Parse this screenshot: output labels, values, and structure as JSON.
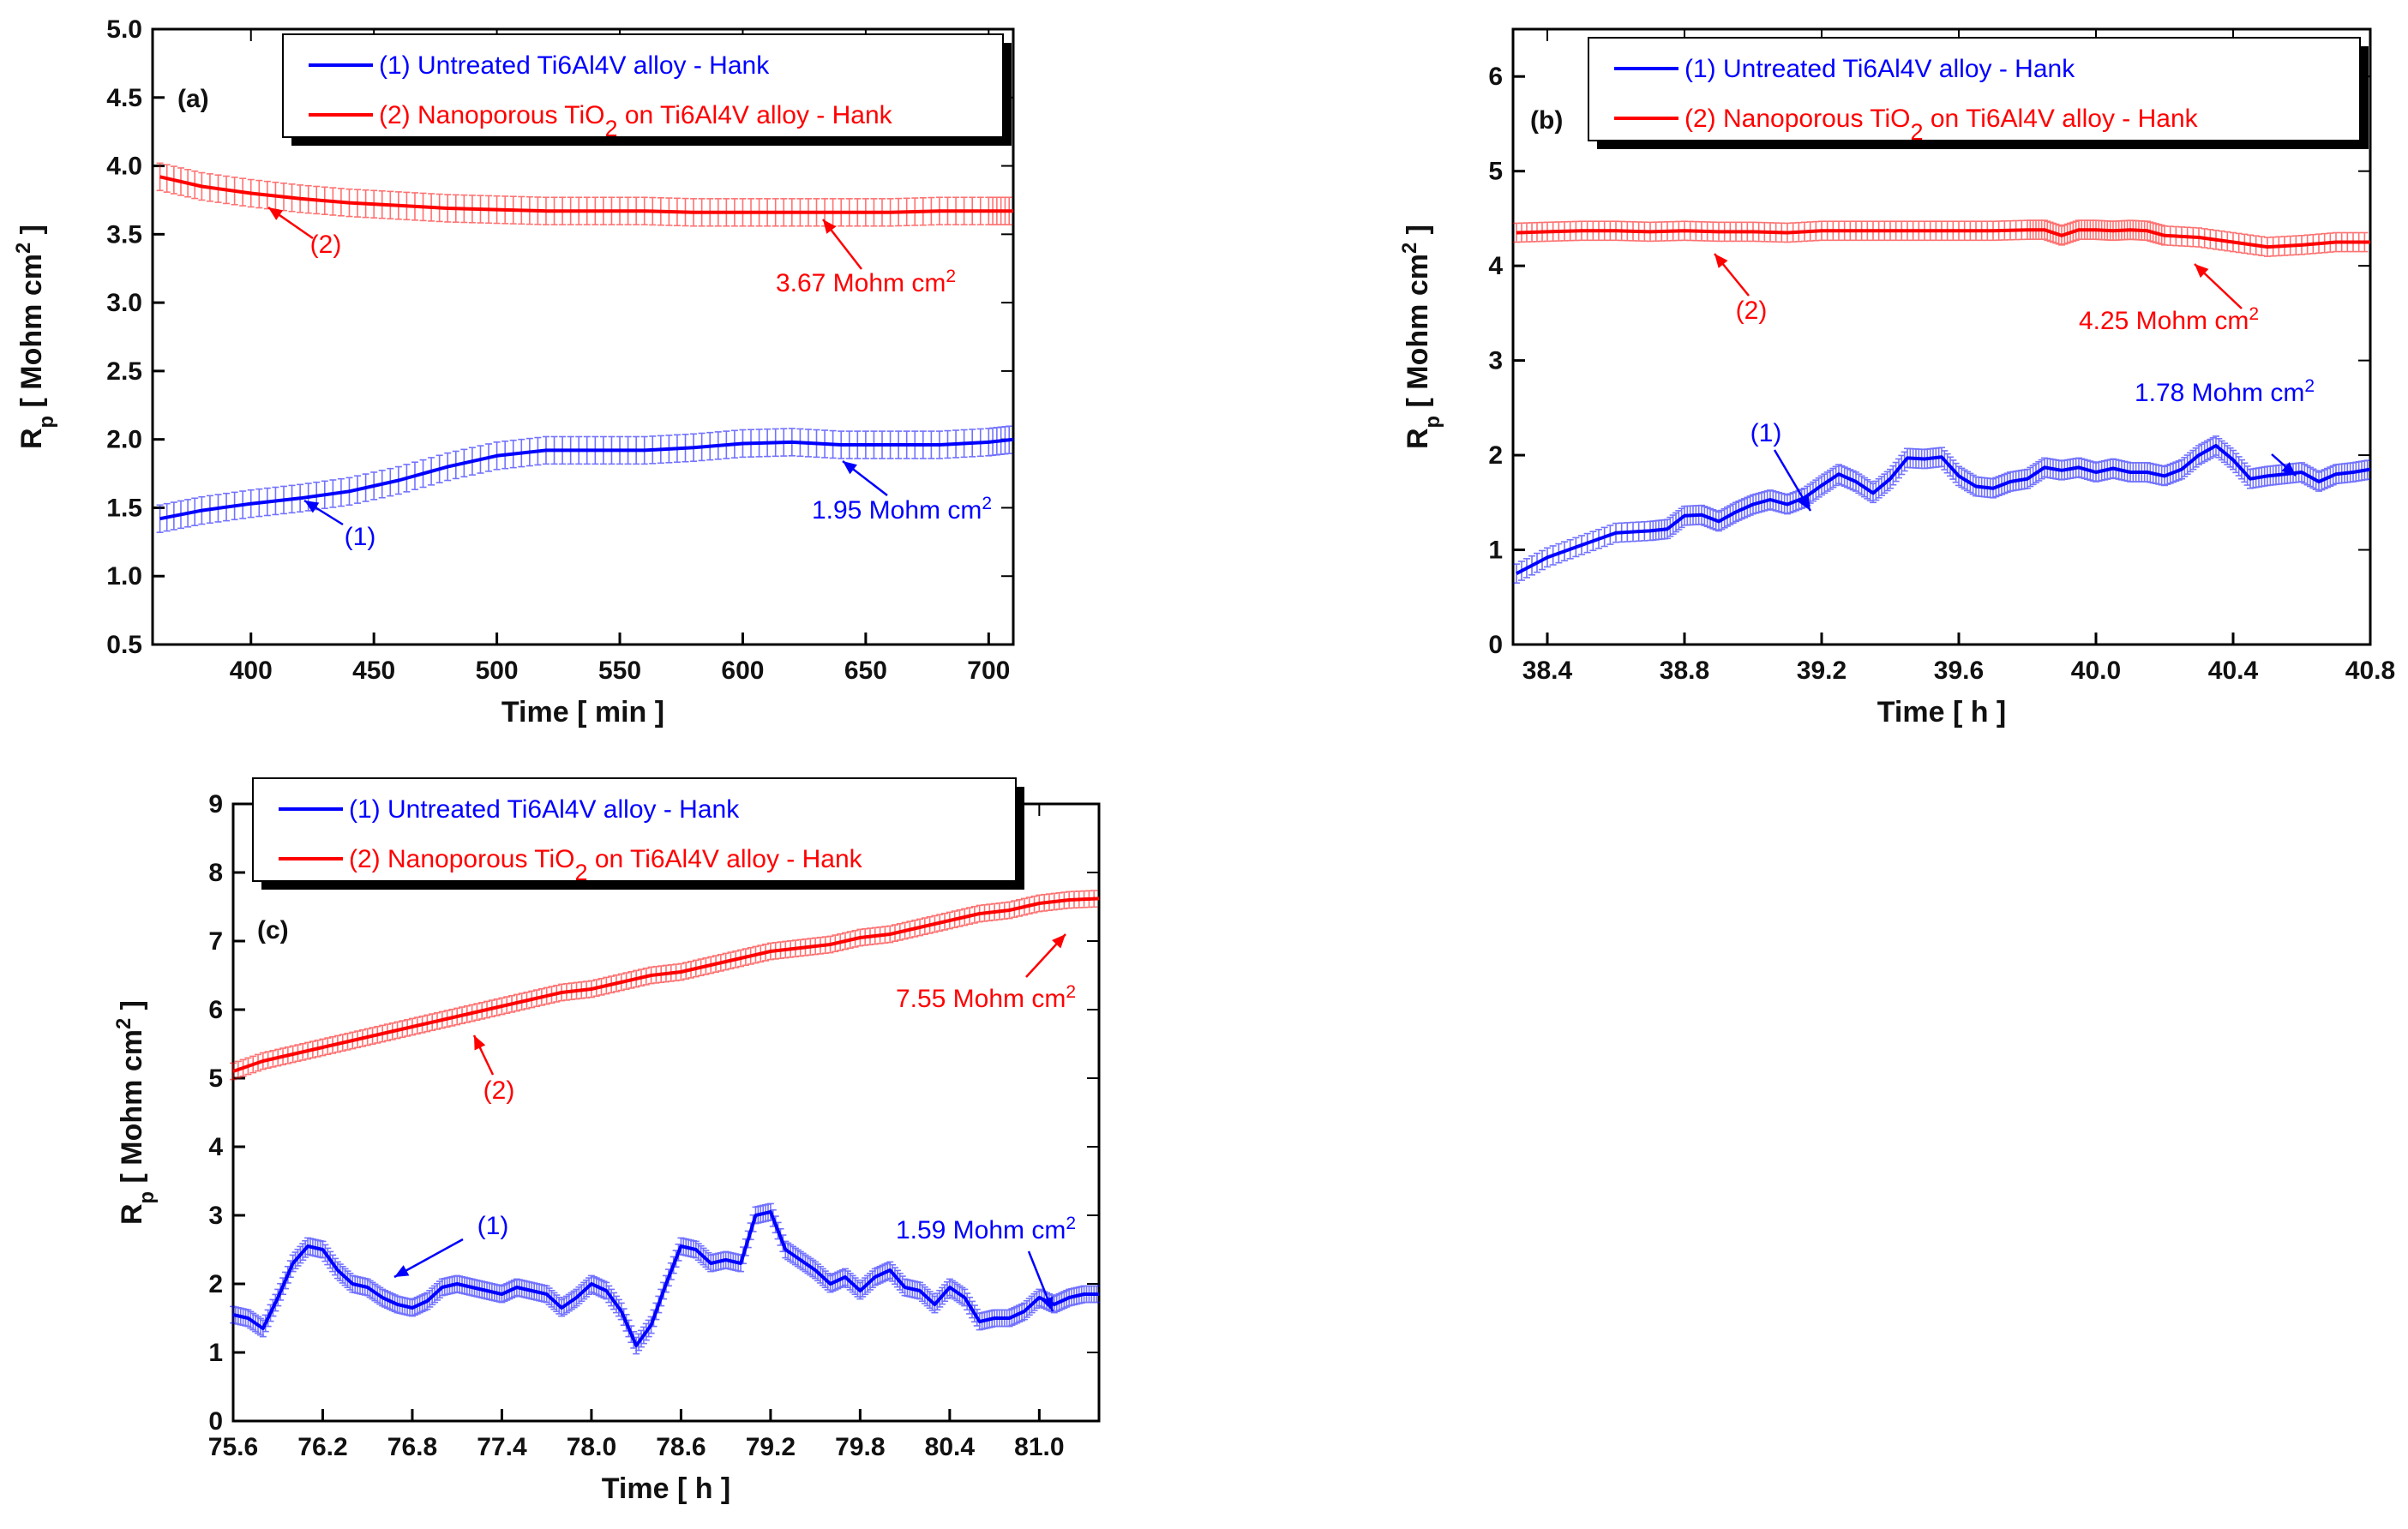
{
  "chart_data": [
    {
      "type": "line",
      "panel": "(a)",
      "xlabel": "Time [ min ]",
      "ylabel_main": "R",
      "ylabel_sub": "p",
      "ylabel_rest": " [ Mohm cm",
      "ylabel_sup": "2",
      "ylabel_end": " ]",
      "xlim": [
        360,
        710
      ],
      "ylim": [
        0.5,
        5.0
      ],
      "xticks": [
        400,
        450,
        500,
        550,
        600,
        650,
        700
      ],
      "yticks": [
        0.5,
        1.0,
        1.5,
        2.0,
        2.5,
        3.0,
        3.5,
        4.0,
        4.5,
        5.0
      ],
      "xtick_labels": [
        "400",
        "450",
        "500",
        "550",
        "600",
        "650",
        "700"
      ],
      "ytick_labels": [
        "0.5",
        "1.0",
        "1.5",
        "2.0",
        "2.5",
        "3.0",
        "3.5",
        "4.0",
        "4.5",
        "5.0"
      ],
      "error": 0.1,
      "series": [
        {
          "name": "(1) Untreated Ti6Al4V alloy  - Hank",
          "color": "#0000ff",
          "x": [
            363,
            380,
            400,
            420,
            440,
            460,
            480,
            500,
            520,
            540,
            560,
            580,
            600,
            620,
            640,
            660,
            680,
            700,
            710
          ],
          "y": [
            1.42,
            1.48,
            1.53,
            1.57,
            1.62,
            1.7,
            1.8,
            1.88,
            1.92,
            1.92,
            1.92,
            1.94,
            1.97,
            1.98,
            1.96,
            1.96,
            1.96,
            1.98,
            2.0
          ]
        },
        {
          "name": "(2) Nanoporous TiO2 on Ti6Al4V alloy - Hank",
          "color": "#ff0000",
          "x": [
            363,
            380,
            400,
            420,
            440,
            460,
            480,
            500,
            520,
            540,
            560,
            580,
            600,
            620,
            640,
            660,
            680,
            700,
            710
          ],
          "y": [
            3.92,
            3.85,
            3.8,
            3.76,
            3.73,
            3.71,
            3.69,
            3.68,
            3.67,
            3.67,
            3.67,
            3.66,
            3.66,
            3.66,
            3.66,
            3.66,
            3.67,
            3.67,
            3.67
          ]
        }
      ],
      "legend": [
        {
          "pre": "(1) Untreated Ti6Al4V alloy  - Hank",
          "sub": "",
          "post": ""
        },
        {
          "pre": "(2) Nanoporous TiO",
          "sub": "2",
          "post": " on Ti6Al4V alloy - Hank"
        }
      ],
      "annotations": [
        {
          "text": "(2)",
          "sup": "",
          "color": "#ff0000"
        },
        {
          "text": "3.67 Mohm cm",
          "sup": "2",
          "color": "#ff0000"
        },
        {
          "text": "(1)",
          "sup": "",
          "color": "#0000ff"
        },
        {
          "text": "1.95 Mohm cm",
          "sup": "2",
          "color": "#0000ff"
        }
      ]
    },
    {
      "type": "line",
      "panel": "(b)",
      "xlabel": "Time [ h ]",
      "ylabel_main": "R",
      "ylabel_sub": "p",
      "ylabel_rest": " [ Mohm cm",
      "ylabel_sup": "2",
      "ylabel_end": " ]",
      "xlim": [
        38.3,
        40.8
      ],
      "ylim": [
        0,
        6.5
      ],
      "xticks": [
        38.4,
        38.8,
        39.2,
        39.6,
        40.0,
        40.4,
        40.8
      ],
      "yticks": [
        0,
        1,
        2,
        3,
        4,
        5,
        6
      ],
      "xtick_labels": [
        "38.4",
        "38.8",
        "39.2",
        "39.6",
        "40.0",
        "40.4",
        "40.8"
      ],
      "ytick_labels": [
        "0",
        "1",
        "2",
        "3",
        "4",
        "5",
        "6"
      ],
      "error": 0.1,
      "series": [
        {
          "name": "(1) Untreated Ti6Al4V alloy  - Hank",
          "color": "#0000ff",
          "x": [
            38.31,
            38.4,
            38.5,
            38.6,
            38.7,
            38.75,
            38.8,
            38.85,
            38.9,
            38.95,
            39.0,
            39.05,
            39.1,
            39.15,
            39.2,
            39.25,
            39.3,
            39.35,
            39.4,
            39.45,
            39.5,
            39.55,
            39.6,
            39.65,
            39.7,
            39.75,
            39.8,
            39.85,
            39.9,
            39.95,
            40.0,
            40.05,
            40.1,
            40.15,
            40.2,
            40.25,
            40.3,
            40.35,
            40.4,
            40.45,
            40.5,
            40.55,
            40.6,
            40.65,
            40.7,
            40.75,
            40.8
          ],
          "y": [
            0.75,
            0.92,
            1.05,
            1.18,
            1.2,
            1.22,
            1.36,
            1.37,
            1.3,
            1.4,
            1.48,
            1.53,
            1.48,
            1.55,
            1.68,
            1.8,
            1.72,
            1.6,
            1.75,
            1.97,
            1.96,
            1.98,
            1.78,
            1.67,
            1.65,
            1.72,
            1.75,
            1.87,
            1.84,
            1.87,
            1.82,
            1.86,
            1.82,
            1.82,
            1.78,
            1.85,
            2.0,
            2.1,
            1.95,
            1.75,
            1.78,
            1.8,
            1.82,
            1.72,
            1.8,
            1.82,
            1.85
          ]
        },
        {
          "name": "(2) Nanoporous TiO2 on Ti6Al4V alloy - Hank",
          "color": "#ff0000",
          "x": [
            38.31,
            38.4,
            38.5,
            38.6,
            38.7,
            38.8,
            38.9,
            39.0,
            39.1,
            39.2,
            39.3,
            39.4,
            39.5,
            39.6,
            39.7,
            39.8,
            39.85,
            39.9,
            39.95,
            40.0,
            40.05,
            40.1,
            40.15,
            40.2,
            40.3,
            40.4,
            40.5,
            40.6,
            40.7,
            40.8
          ],
          "y": [
            4.35,
            4.36,
            4.37,
            4.37,
            4.36,
            4.37,
            4.36,
            4.36,
            4.35,
            4.37,
            4.37,
            4.37,
            4.37,
            4.37,
            4.37,
            4.38,
            4.38,
            4.32,
            4.38,
            4.38,
            4.37,
            4.38,
            4.37,
            4.32,
            4.3,
            4.25,
            4.2,
            4.22,
            4.25,
            4.25
          ]
        }
      ],
      "legend": [
        {
          "pre": "(1) Untreated Ti6Al4V alloy  - Hank",
          "sub": "",
          "post": ""
        },
        {
          "pre": "(2) Nanoporous TiO",
          "sub": "2",
          "post": " on Ti6Al4V alloy - Hank"
        }
      ],
      "annotations": [
        {
          "text": "(2)",
          "sup": "",
          "color": "#ff0000"
        },
        {
          "text": "4.25 Mohm cm",
          "sup": "2",
          "color": "#ff0000"
        },
        {
          "text": "(1)",
          "sup": "",
          "color": "#0000ff"
        },
        {
          "text": "1.78 Mohm cm",
          "sup": "2",
          "color": "#0000ff"
        }
      ]
    },
    {
      "type": "line",
      "panel": "(c)",
      "xlabel": "Time [ h ]",
      "ylabel_main": "R",
      "ylabel_sub": "p",
      "ylabel_rest": " [ Mohm cm",
      "ylabel_sup": "2",
      "ylabel_end": " ]",
      "xlim": [
        75.6,
        81.4
      ],
      "ylim": [
        0,
        9
      ],
      "xticks": [
        75.6,
        76.2,
        76.8,
        77.4,
        78.0,
        78.6,
        79.2,
        79.8,
        80.4,
        81.0
      ],
      "yticks": [
        0,
        1,
        2,
        3,
        4,
        5,
        6,
        7,
        8,
        9
      ],
      "xtick_labels": [
        "75.6",
        "76.2",
        "76.8",
        "77.4",
        "78.0",
        "78.6",
        "79.2",
        "79.8",
        "80.4",
        "81.0"
      ],
      "ytick_labels": [
        "0",
        "1",
        "2",
        "3",
        "4",
        "5",
        "6",
        "7",
        "8",
        "9"
      ],
      "error": 0.12,
      "series": [
        {
          "name": "(1) Untreated Ti6Al4V alloy  - Hank",
          "color": "#0000ff",
          "x": [
            75.6,
            75.7,
            75.8,
            75.9,
            76.0,
            76.1,
            76.2,
            76.3,
            76.4,
            76.5,
            76.6,
            76.7,
            76.8,
            76.9,
            77.0,
            77.1,
            77.2,
            77.3,
            77.4,
            77.5,
            77.6,
            77.7,
            77.8,
            77.9,
            78.0,
            78.1,
            78.2,
            78.3,
            78.4,
            78.5,
            78.6,
            78.7,
            78.8,
            78.9,
            79.0,
            79.1,
            79.2,
            79.3,
            79.4,
            79.5,
            79.6,
            79.7,
            79.8,
            79.9,
            80.0,
            80.1,
            80.2,
            80.3,
            80.4,
            80.5,
            80.6,
            80.7,
            80.8,
            80.9,
            81.0,
            81.1,
            81.2,
            81.3,
            81.4
          ],
          "y": [
            1.55,
            1.5,
            1.35,
            1.8,
            2.3,
            2.55,
            2.5,
            2.2,
            2.0,
            1.95,
            1.8,
            1.7,
            1.65,
            1.75,
            1.95,
            2.0,
            1.95,
            1.9,
            1.85,
            1.95,
            1.9,
            1.85,
            1.65,
            1.8,
            2.0,
            1.9,
            1.6,
            1.1,
            1.4,
            2.0,
            2.55,
            2.5,
            2.3,
            2.35,
            2.3,
            3.0,
            3.05,
            2.5,
            2.35,
            2.2,
            2.0,
            2.1,
            1.9,
            2.1,
            2.2,
            1.95,
            1.9,
            1.7,
            1.95,
            1.8,
            1.45,
            1.5,
            1.5,
            1.6,
            1.8,
            1.7,
            1.8,
            1.85,
            1.85
          ]
        },
        {
          "name": "(2) Nanoporous TiO2 on Ti6Al4V alloy - Hank",
          "color": "#ff0000",
          "x": [
            75.6,
            75.8,
            76.0,
            76.2,
            76.4,
            76.6,
            76.8,
            77.0,
            77.2,
            77.4,
            77.6,
            77.8,
            78.0,
            78.2,
            78.4,
            78.6,
            78.8,
            79.0,
            79.2,
            79.4,
            79.6,
            79.8,
            80.0,
            80.2,
            80.4,
            80.6,
            80.8,
            81.0,
            81.2,
            81.4
          ],
          "y": [
            5.1,
            5.25,
            5.35,
            5.45,
            5.55,
            5.65,
            5.75,
            5.85,
            5.95,
            6.05,
            6.15,
            6.25,
            6.3,
            6.4,
            6.5,
            6.55,
            6.65,
            6.75,
            6.85,
            6.9,
            6.95,
            7.05,
            7.1,
            7.2,
            7.3,
            7.4,
            7.45,
            7.55,
            7.6,
            7.62
          ]
        }
      ],
      "legend": [
        {
          "pre": "(1) Untreated Ti6Al4V alloy  - Hank",
          "sub": "",
          "post": ""
        },
        {
          "pre": "(2) Nanoporous TiO",
          "sub": "2",
          "post": " on Ti6Al4V alloy - Hank"
        }
      ],
      "annotations": [
        {
          "text": "(2)",
          "sup": "",
          "color": "#ff0000"
        },
        {
          "text": "7.55 Mohm cm",
          "sup": "2",
          "color": "#ff0000"
        },
        {
          "text": "(1)",
          "sup": "",
          "color": "#0000ff"
        },
        {
          "text": "1.59 Mohm cm",
          "sup": "2",
          "color": "#0000ff"
        }
      ]
    }
  ]
}
